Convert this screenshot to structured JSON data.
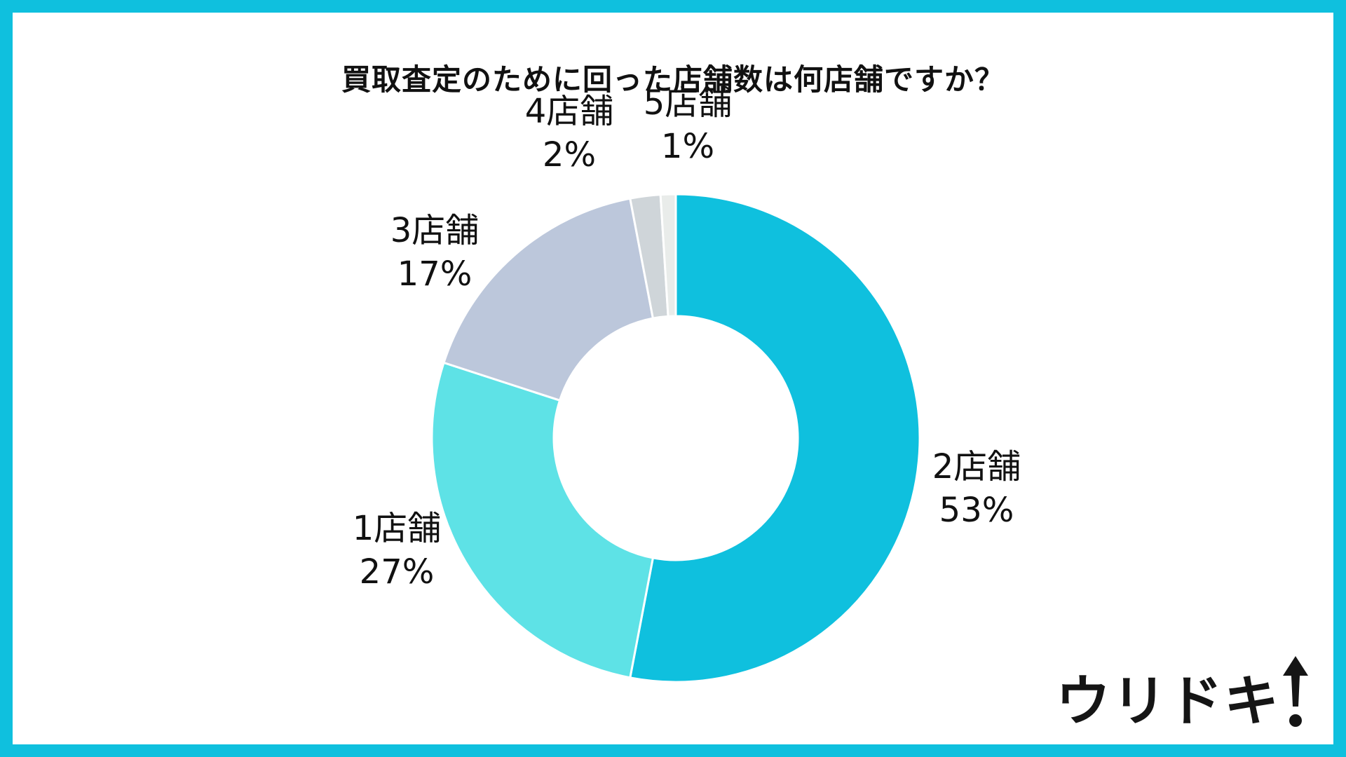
{
  "title": "買取査定のために回った店舗数は何店舗ですか？",
  "chart_data": {
    "type": "pie",
    "variant": "donut",
    "title": "買取査定のために回った店舗数は何店舗ですか？",
    "slices": [
      {
        "name": "2店舗",
        "value": 53,
        "pct_label": "53%",
        "color": "#0fc0de"
      },
      {
        "name": "1店舗",
        "value": 27,
        "pct_label": "27%",
        "color": "#5ee2e6"
      },
      {
        "name": "3店舗",
        "value": 17,
        "pct_label": "17%",
        "color": "#bcc7db"
      },
      {
        "name": "4店舗",
        "value": 2,
        "pct_label": "2%",
        "color": "#cfd5d9"
      },
      {
        "name": "5店舗",
        "value": 1,
        "pct_label": "1%",
        "color": "#e9ecea"
      }
    ]
  },
  "logo": {
    "text": "ウリドキ",
    "icon": "up-arrow-exclamation-icon"
  }
}
